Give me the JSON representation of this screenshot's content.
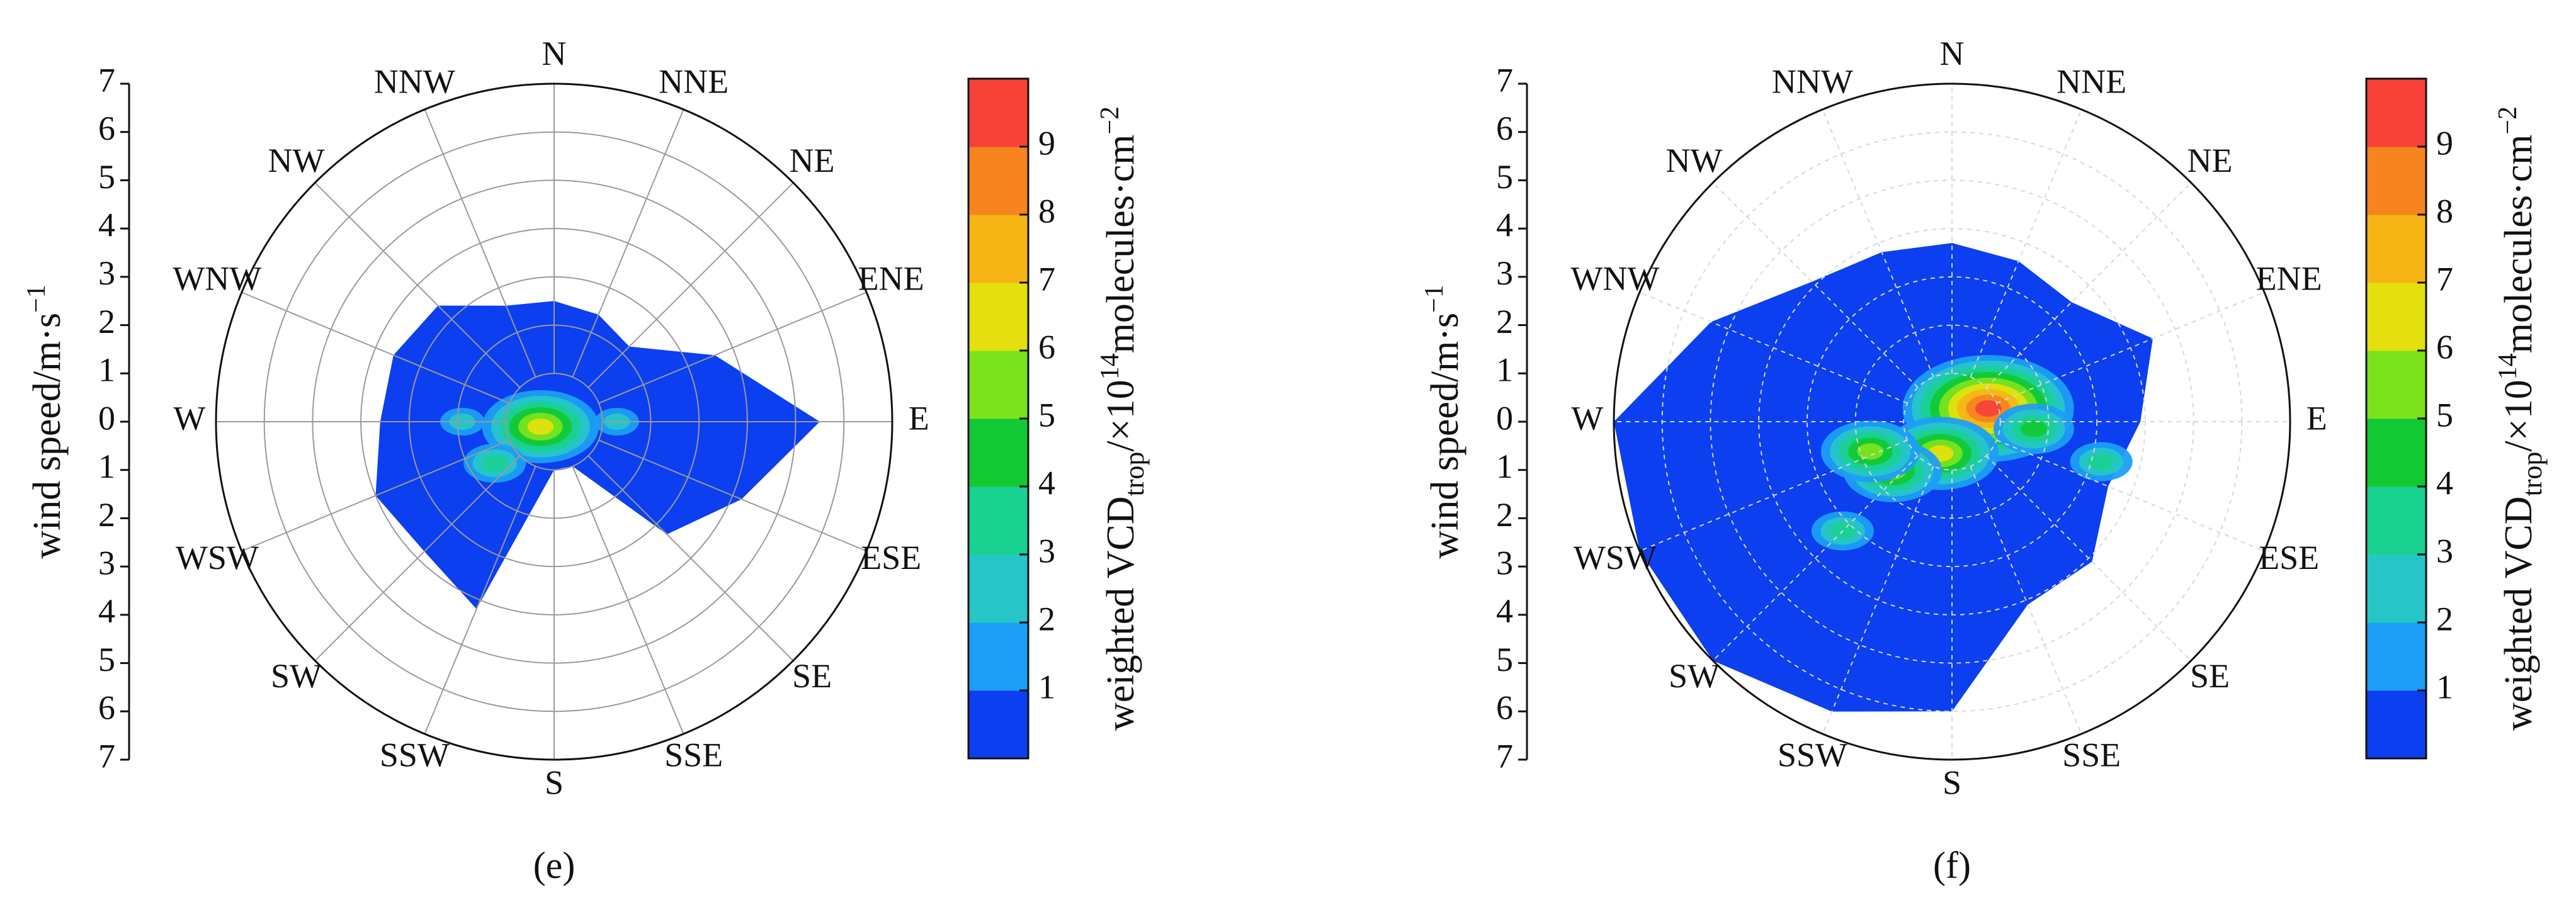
{
  "chart_data": [
    {
      "type": "polar-contour",
      "caption": "(e)",
      "directions": [
        "N",
        "NNE",
        "NE",
        "ENE",
        "E",
        "ESE",
        "SE",
        "SSE",
        "S",
        "SSW",
        "SW",
        "WSW",
        "W",
        "WNW",
        "NW",
        "NNW"
      ],
      "rlim": [
        0,
        7
      ],
      "yaxis": {
        "label": "wind speed/m·s",
        "label_sup": "−1",
        "ticks": [
          "7",
          "6",
          "5",
          "4",
          "3",
          "2",
          "1",
          "0",
          "1",
          "2",
          "3",
          "4",
          "5",
          "6",
          "7"
        ]
      },
      "grid": "solid",
      "data_extent_outline": [
        {
          "dir": 0,
          "speed": 2.5
        },
        {
          "dir": 22.5,
          "speed": 2.4
        },
        {
          "dir": 45,
          "speed": 2.2
        },
        {
          "dir": 67.5,
          "speed": 3.6
        },
        {
          "dir": 90,
          "speed": 5.5
        },
        {
          "dir": 112.5,
          "speed": 4.2
        },
        {
          "dir": 135,
          "speed": 3.3
        },
        {
          "dir": 157.5,
          "speed": 1.0
        },
        {
          "dir": 180,
          "speed": 1.0
        },
        {
          "dir": 202.5,
          "speed": 4.2
        },
        {
          "dir": 225,
          "speed": 3.8
        },
        {
          "dir": 247.5,
          "speed": 4.0
        },
        {
          "dir": 270,
          "speed": 3.6
        },
        {
          "dir": 292.5,
          "speed": 3.6
        },
        {
          "dir": 315,
          "speed": 3.4
        },
        {
          "dir": 337.5,
          "speed": 2.6
        }
      ],
      "hotspots": [
        {
          "dir": 250,
          "speed": 0.3,
          "value": 5.5
        },
        {
          "dir": 235,
          "speed": 1.5,
          "value": 3
        },
        {
          "dir": 270,
          "speed": 1.9,
          "value": 2
        },
        {
          "dir": 90,
          "speed": 1.3,
          "value": 1.5
        }
      ],
      "colorbar": {
        "label": "weighted VCD",
        "label_sub": "trop",
        "label_rest": "/×10",
        "label_sup1": "14",
        "label_rest2": "molecules·cm",
        "label_sup2": "−2",
        "ticks": [
          "1",
          "2",
          "3",
          "4",
          "5",
          "6",
          "7",
          "8",
          "9"
        ],
        "range": [
          0,
          10
        ],
        "colors": [
          "#0b3ff0",
          "#1c9ef6",
          "#26c6c8",
          "#19d191",
          "#12c934",
          "#7ae31c",
          "#e3e00d",
          "#f6b515",
          "#f6841f",
          "#f64238"
        ]
      }
    },
    {
      "type": "polar-contour",
      "caption": "(f)",
      "directions": [
        "N",
        "NNE",
        "NE",
        "ENE",
        "E",
        "ESE",
        "SE",
        "SSE",
        "S",
        "SSW",
        "SW",
        "WSW",
        "W",
        "WNW",
        "NW",
        "NNW"
      ],
      "rlim": [
        0,
        7
      ],
      "yaxis": {
        "label": "wind speed/m·s",
        "label_sup": "−1",
        "ticks": [
          "7",
          "6",
          "5",
          "4",
          "3",
          "2",
          "1",
          "0",
          "1",
          "2",
          "3",
          "4",
          "5",
          "6",
          "7"
        ]
      },
      "grid": "dashed",
      "data_extent_outline": [
        {
          "dir": 0,
          "speed": 3.7
        },
        {
          "dir": 22.5,
          "speed": 3.6
        },
        {
          "dir": 45,
          "speed": 3.5
        },
        {
          "dir": 67.5,
          "speed": 4.5
        },
        {
          "dir": 90,
          "speed": 3.9
        },
        {
          "dir": 112.5,
          "speed": 3.5
        },
        {
          "dir": 135,
          "speed": 4.1
        },
        {
          "dir": 157.5,
          "speed": 4.1
        },
        {
          "dir": 180,
          "speed": 6.0
        },
        {
          "dir": 202.5,
          "speed": 6.5
        },
        {
          "dir": 225,
          "speed": 7.0
        },
        {
          "dir": 247.5,
          "speed": 7.0
        },
        {
          "dir": 270,
          "speed": 7.0
        },
        {
          "dir": 292.5,
          "speed": 5.4
        },
        {
          "dir": 315,
          "speed": 4.1
        },
        {
          "dir": 337.5,
          "speed": 3.8
        }
      ],
      "hotspots": [
        {
          "dir": 70,
          "speed": 0.8,
          "value": 9
        },
        {
          "dir": 200,
          "speed": 0.7,
          "value": 6
        },
        {
          "dir": 230,
          "speed": 1.6,
          "value": 5
        },
        {
          "dir": 250,
          "speed": 1.8,
          "value": 5
        },
        {
          "dir": 95,
          "speed": 1.7,
          "value": 4
        },
        {
          "dir": 105,
          "speed": 3.2,
          "value": 3
        },
        {
          "dir": 225,
          "speed": 3.2,
          "value": 3
        }
      ],
      "colorbar": {
        "label": "weighted VCD",
        "label_sub": "trop",
        "label_rest": "/×10",
        "label_sup1": "14",
        "label_rest2": "molecules·cm",
        "label_sup2": "−2",
        "ticks": [
          "1",
          "2",
          "3",
          "4",
          "5",
          "6",
          "7",
          "8",
          "9"
        ],
        "range": [
          0,
          10
        ],
        "colors": [
          "#0b3ff0",
          "#1c9ef6",
          "#26c6c8",
          "#19d191",
          "#12c934",
          "#7ae31c",
          "#e3e00d",
          "#f6b515",
          "#f6841f",
          "#f64238"
        ]
      }
    }
  ]
}
